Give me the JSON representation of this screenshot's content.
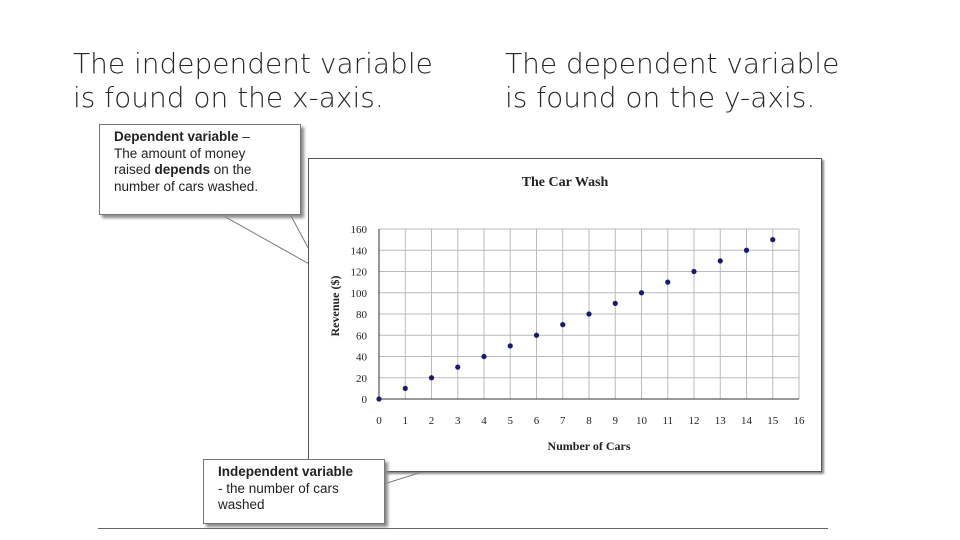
{
  "headings": {
    "left": [
      "The independent variable",
      "is found on the x-axis."
    ],
    "right": [
      "The dependent variable",
      "is found on the y-axis."
    ]
  },
  "callouts": {
    "dependent": {
      "label": "Dependent variable",
      "dash": " –",
      "line2": "The amount of money",
      "line3_pre": "raised ",
      "line3_bold": "depends",
      "line3_post": " on the",
      "line4": "number of cars washed."
    },
    "independent": {
      "label": "Independent variable",
      "line2": "- the number of cars",
      "line3": "washed"
    }
  },
  "chart_data": {
    "type": "scatter",
    "title": "The Car Wash",
    "xlabel": "Number of Cars",
    "ylabel": "Revenue ($)",
    "xlim": [
      0,
      16
    ],
    "ylim": [
      0,
      160
    ],
    "xticks": [
      0,
      1,
      2,
      3,
      4,
      5,
      6,
      7,
      8,
      9,
      10,
      11,
      12,
      13,
      14,
      15,
      16
    ],
    "yticks": [
      0,
      20,
      40,
      60,
      80,
      100,
      120,
      140,
      160
    ],
    "grid": true,
    "colors": {
      "marker": "#1a1a6e",
      "grid": "#bbbbbb",
      "axis": "#333333"
    },
    "series": [
      {
        "x": [
          0,
          1,
          2,
          3,
          4,
          5,
          6,
          7,
          8,
          9,
          10,
          11,
          12,
          13,
          14,
          15
        ],
        "y": [
          0,
          10,
          20,
          30,
          40,
          50,
          60,
          70,
          80,
          90,
          100,
          110,
          120,
          130,
          140,
          150
        ]
      }
    ]
  }
}
